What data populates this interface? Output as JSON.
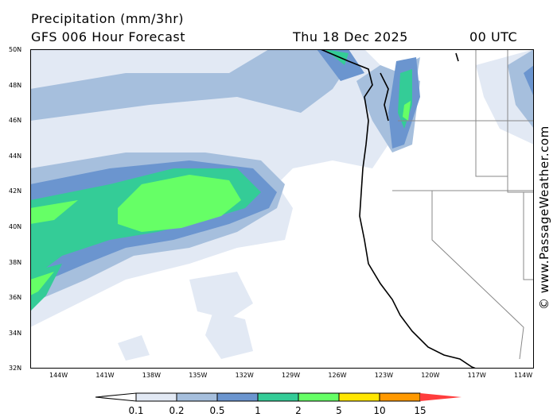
{
  "header": {
    "title": "Precipitation (mm/3hr)",
    "model": "GFS 006 Hour Forecast",
    "date": "Thu 18 Dec 2025",
    "time": "00 UTC"
  },
  "watermark": "© www.PassageWeather.com",
  "lat_labels": [
    "50N",
    "48N",
    "46N",
    "44N",
    "42N",
    "40N",
    "38N",
    "36N",
    "34N",
    "32N"
  ],
  "lon_labels": [
    "144W",
    "141W",
    "138W",
    "135W",
    "132W",
    "129W",
    "126W",
    "123W",
    "120W",
    "117W",
    "114W"
  ],
  "colorbar": {
    "labels": [
      "0.1",
      "0.2",
      "0.5",
      "1",
      "2",
      "5",
      "10",
      "15"
    ],
    "colors": [
      "#ffffff",
      "#e2e9f4",
      "#a6bfdd",
      "#6b95cf",
      "#34cc97",
      "#66ff66",
      "#ffe600",
      "#ff9900",
      "#ff3d3d"
    ]
  }
}
